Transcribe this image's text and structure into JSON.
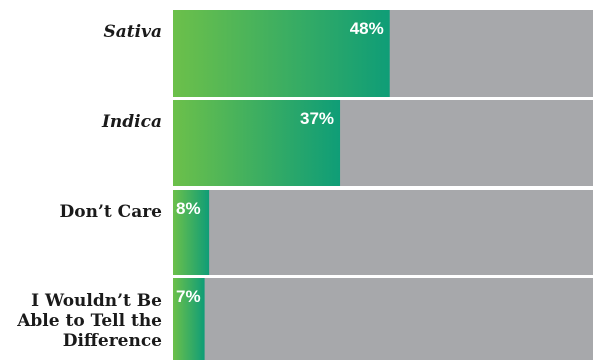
{
  "chart_data": {
    "type": "bar",
    "orientation": "horizontal",
    "categories": [
      [
        "Sativa"
      ],
      [
        "Indica"
      ],
      [
        "Don’t Care"
      ],
      [
        "I Wouldn’t Be",
        "Able to Tell the",
        "Difference"
      ]
    ],
    "italic_categories": [
      true,
      true,
      false,
      false
    ],
    "values": [
      48,
      37,
      8,
      7
    ],
    "value_labels": [
      "48%",
      "37%",
      "8%",
      "7%"
    ],
    "xlim": [
      0,
      100
    ],
    "unit": "%",
    "title": "",
    "xlabel": "",
    "ylabel": "",
    "grid": false,
    "legend": "none"
  },
  "colors": {
    "bar_gradient_start": "#6cc04a",
    "bar_gradient_end": "#0f9d77",
    "track": "#a7a8ab",
    "divider": "#ffffff",
    "label_text": "#1a1a1a",
    "value_text": "#ffffff"
  }
}
